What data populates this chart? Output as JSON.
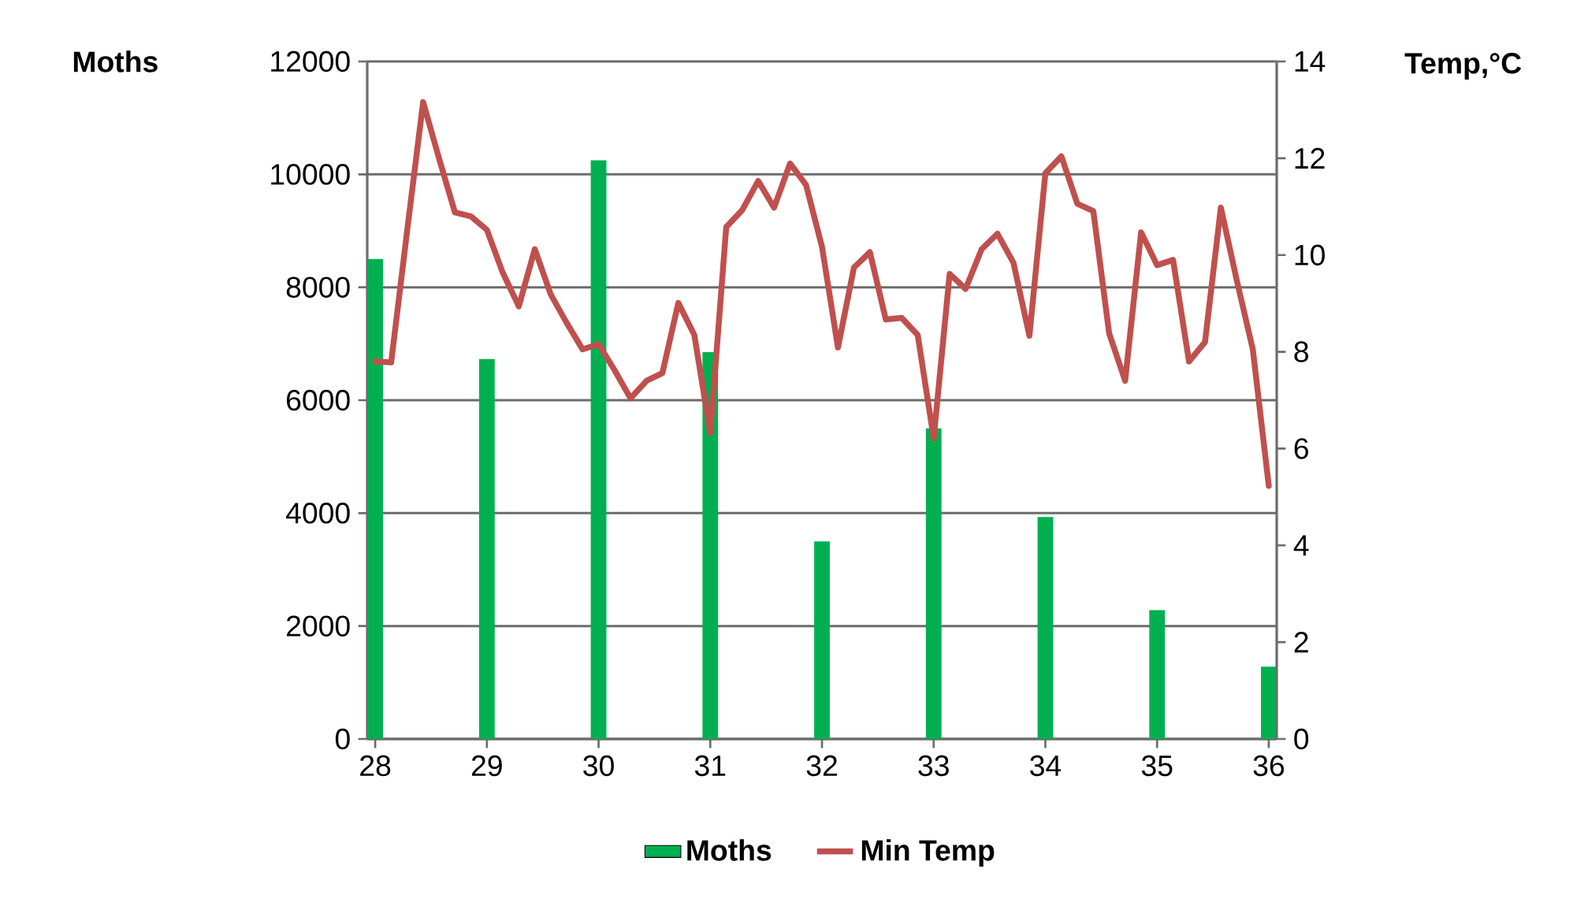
{
  "chart_data": {
    "type": "bar",
    "xlim": [
      27.929,
      36.071
    ],
    "xticks": [
      28,
      29,
      30,
      31,
      32,
      33,
      34,
      35,
      36
    ],
    "ylim": [
      0,
      12000
    ],
    "yticks": [
      0,
      2000,
      4000,
      6000,
      8000,
      10000,
      12000
    ],
    "y2lim": [
      0,
      14
    ],
    "y2ticks": [
      0,
      2,
      4,
      6,
      8,
      10,
      12,
      14
    ],
    "ylabel": "Moths",
    "y2label": "Temp,°C",
    "grid": "y",
    "legend": "bottom",
    "series": [
      {
        "name": "Moths",
        "color": "#00b050",
        "x": [
          28,
          29,
          30,
          31,
          32,
          33,
          34,
          35,
          36
        ],
        "values": [
          8500,
          6730,
          10250,
          6850,
          3500,
          5500,
          3930,
          2280,
          1280
        ]
      },
      {
        "name": "Min Temp",
        "type": "line",
        "axis": "y2",
        "color": "#c0504d",
        "x": [
          28,
          28.143,
          28.286,
          28.429,
          28.571,
          28.714,
          28.857,
          29,
          29.143,
          29.286,
          29.429,
          29.571,
          29.714,
          29.857,
          30,
          30.143,
          30.286,
          30.429,
          30.571,
          30.714,
          30.857,
          31,
          31.143,
          31.286,
          31.429,
          31.571,
          31.714,
          31.857,
          32,
          32.143,
          32.286,
          32.429,
          32.571,
          32.714,
          32.857,
          33,
          33.143,
          33.286,
          33.429,
          33.571,
          33.714,
          33.857,
          34,
          34.143,
          34.286,
          34.429,
          34.571,
          34.714,
          34.857,
          35,
          35.143,
          35.286,
          35.429,
          35.571,
          35.714,
          35.857,
          36
        ],
        "values": [
          7.8,
          7.78,
          10.5,
          13.16,
          12.0,
          10.88,
          10.8,
          10.52,
          9.63,
          8.94,
          10.12,
          9.19,
          8.6,
          8.05,
          8.16,
          7.62,
          7.04,
          7.4,
          7.56,
          9.01,
          8.35,
          6.32,
          10.58,
          10.93,
          11.53,
          10.98,
          11.89,
          11.45,
          10.17,
          8.09,
          9.74,
          10.06,
          8.67,
          8.7,
          8.35,
          6.21,
          9.61,
          9.3,
          10.12,
          10.44,
          9.84,
          8.33,
          11.69,
          12.04,
          11.06,
          10.91,
          8.38,
          7.4,
          10.47,
          9.79,
          9.9,
          7.8,
          8.2,
          10.98,
          9.47,
          8.05,
          5.23
        ]
      }
    ]
  }
}
